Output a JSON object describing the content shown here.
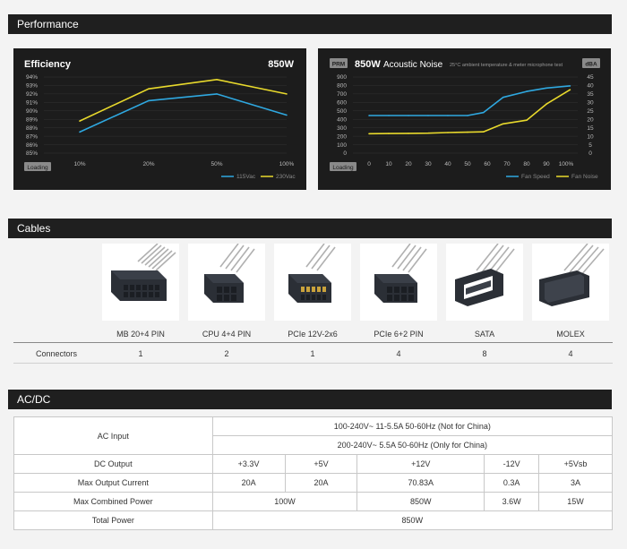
{
  "sections": {
    "performance": "Performance",
    "cables": "Cables",
    "acdc": "AC/DC"
  },
  "efficiency": {
    "title": "Efficiency",
    "wattage": "850W",
    "loading_label": "Loading",
    "legend": [
      "115Vac",
      "230Vac"
    ],
    "colors": {
      "115Vac": "#2fa8e0",
      "230Vac": "#e8d92c"
    }
  },
  "acoustic": {
    "badge": "PRM",
    "wattage": "850W",
    "title": "Acoustic Noise",
    "note": "25°C ambient temperature & meter microphone test",
    "right_unit": "dBA",
    "loading_label": "Loading",
    "legend": [
      "Fan Speed",
      "Fan Noise"
    ],
    "colors": {
      "Fan Speed": "#2fa8e0",
      "Fan Noise": "#e8d92c"
    }
  },
  "chart_data": [
    {
      "type": "line",
      "title": "Efficiency",
      "categories": [
        "10%",
        "20%",
        "50%",
        "100%"
      ],
      "series": [
        {
          "name": "115Vac",
          "values": [
            87.5,
            91.2,
            92.0,
            89.5
          ]
        },
        {
          "name": "230Vac",
          "values": [
            88.8,
            92.6,
            93.7,
            92.0
          ]
        }
      ],
      "yticks": [
        "94%",
        "93%",
        "92%",
        "91%",
        "90%",
        "89%",
        "88%",
        "87%",
        "86%",
        "85%"
      ],
      "ylim": [
        85,
        94
      ],
      "xlabel": "Loading",
      "legend_position": "bottom-right"
    },
    {
      "type": "line",
      "title": "Acoustic Noise",
      "categories": [
        "0",
        "10",
        "20",
        "30",
        "40",
        "50",
        "60",
        "70",
        "80",
        "90",
        "100%"
      ],
      "series": [
        {
          "name": "Fan Speed",
          "axis": "left",
          "x": [
            0,
            10,
            20,
            30,
            40,
            50,
            58,
            68,
            80,
            90,
            102
          ],
          "values": [
            445,
            445,
            445,
            445,
            445,
            445,
            480,
            660,
            730,
            770,
            795
          ]
        },
        {
          "name": "Fan Noise",
          "axis": "right",
          "x": [
            0,
            10,
            20,
            30,
            40,
            50,
            58,
            68,
            80,
            90,
            102
          ],
          "values": [
            11.5,
            11.6,
            11.7,
            11.8,
            12.2,
            12.4,
            12.6,
            17.3,
            19.5,
            29,
            37.5
          ]
        }
      ],
      "yticks_left": [
        "900",
        "800",
        "700",
        "600",
        "500",
        "400",
        "300",
        "200",
        "100",
        "0"
      ],
      "yticks_right": [
        "45",
        "40",
        "35",
        "30",
        "25",
        "20",
        "15",
        "10",
        "5",
        "0"
      ],
      "ylim_left": [
        0,
        900
      ],
      "ylim_right": [
        0,
        45
      ],
      "xlabel": "Loading",
      "legend_position": "bottom-right"
    }
  ],
  "cables": {
    "connectors_label": "Connectors",
    "items": [
      {
        "label": "MB 20+4 PIN",
        "count": "1",
        "icon": "mb-connector-icon"
      },
      {
        "label": "CPU 4+4 PIN",
        "count": "2",
        "icon": "cpu-connector-icon"
      },
      {
        "label": "PCIe 12V-2x6",
        "count": "1",
        "icon": "pcie-12v-connector-icon"
      },
      {
        "label": "PCIe 6+2 PIN",
        "count": "4",
        "icon": "pcie-connector-icon"
      },
      {
        "label": "SATA",
        "count": "8",
        "icon": "sata-connector-icon"
      },
      {
        "label": "MOLEX",
        "count": "4",
        "icon": "molex-connector-icon"
      }
    ]
  },
  "acdc": {
    "ac_input_label": "AC Input",
    "ac_input_line1": "100-240V~  11-5.5A  50-60Hz (Not for China)",
    "ac_input_line2": "200-240V~  5.5A     50-60Hz (Only for China)",
    "dc_output_label": "DC Output",
    "rails": [
      "+3.3V",
      "+5V",
      "+12V",
      "-12V",
      "+5Vsb"
    ],
    "max_current_label": "Max Output Current",
    "max_current": [
      "20A",
      "20A",
      "70.83A",
      "0.3A",
      "3A"
    ],
    "max_combined_label": "Max Combined Power",
    "max_combined": [
      "100W",
      "850W",
      "3.6W",
      "15W"
    ],
    "total_power_label": "Total Power",
    "total_power": "850W"
  }
}
